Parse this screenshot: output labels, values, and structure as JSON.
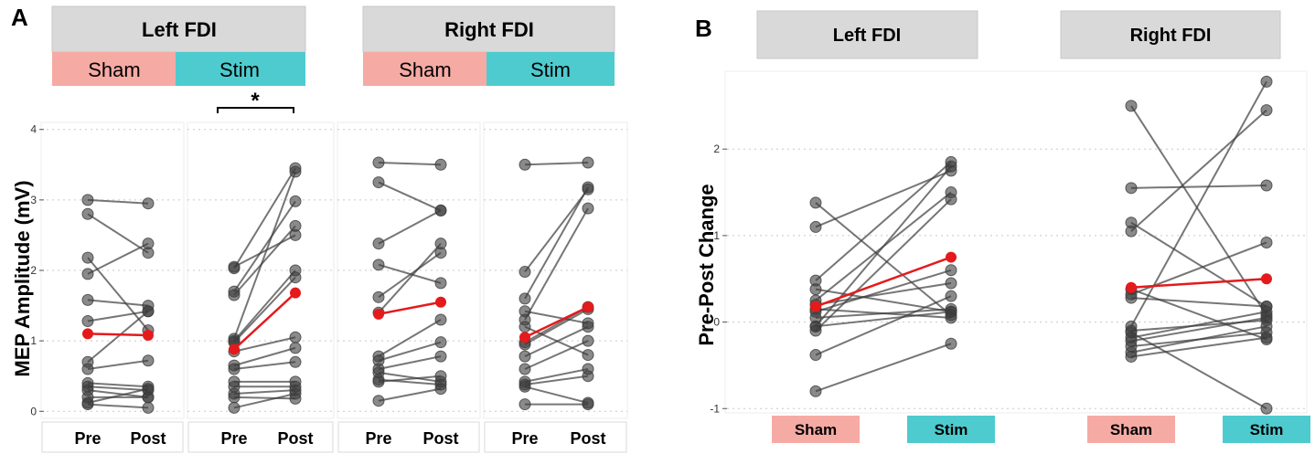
{
  "panel_a": {
    "letter": "A",
    "headers": [
      "Left FDI",
      "Right FDI"
    ],
    "condition_labels": [
      "Sham",
      "Stim",
      "Sham",
      "Stim"
    ],
    "significance": "*",
    "ylabel": "MEP Amplitude (mV)",
    "yticks": [
      "0",
      "1",
      "2",
      "3",
      "4"
    ],
    "xtick_labels": [
      "Pre",
      "Post"
    ]
  },
  "panel_b": {
    "letter": "B",
    "headers": [
      "Left FDI",
      "Right FDI"
    ],
    "significance": "*",
    "ylabel": "Pre-Post Change",
    "yticks": [
      "-1",
      "0",
      "1",
      "2"
    ],
    "xtick_labels": [
      "Sham",
      "Stim",
      "Sham",
      "Stim"
    ]
  },
  "colors": {
    "sham": "#f6aaa4",
    "stim": "#4ecbcf",
    "header_bg": "#d9d9d9",
    "points": "#3c3c3c",
    "mean": "#e41a1c"
  },
  "chart_data": [
    {
      "type": "line",
      "title": "",
      "ylabel": "MEP Amplitude (mV)",
      "ylim": [
        -0.1,
        4.1
      ],
      "x": [
        "Pre",
        "Post"
      ],
      "facets": [
        {
          "muscle": "Left FDI",
          "condition": "Sham",
          "subjects": [
            [
              3.0,
              2.95
            ],
            [
              2.8,
              2.25
            ],
            [
              2.18,
              1.15
            ],
            [
              1.95,
              2.38
            ],
            [
              1.58,
              1.5
            ],
            [
              1.28,
              1.42
            ],
            [
              0.7,
              1.42
            ],
            [
              0.6,
              0.72
            ],
            [
              0.4,
              0.35
            ],
            [
              0.35,
              0.3
            ],
            [
              0.3,
              0.2
            ],
            [
              0.2,
              0.2
            ],
            [
              0.12,
              0.32
            ],
            [
              0.1,
              0.05
            ]
          ],
          "mean": [
            1.1,
            1.08
          ]
        },
        {
          "muscle": "Left FDI",
          "condition": "Stim",
          "subjects": [
            [
              2.05,
              2.5
            ],
            [
              2.03,
              3.45
            ],
            [
              1.7,
              2.98
            ],
            [
              1.65,
              2.63
            ],
            [
              1.03,
              3.4
            ],
            [
              1.0,
              2.0
            ],
            [
              0.98,
              1.9
            ],
            [
              0.85,
              1.05
            ],
            [
              0.65,
              0.9
            ],
            [
              0.6,
              0.7
            ],
            [
              0.42,
              0.42
            ],
            [
              0.35,
              0.35
            ],
            [
              0.25,
              0.3
            ],
            [
              0.2,
              0.18
            ],
            [
              0.05,
              0.25
            ]
          ],
          "mean": [
            0.88,
            1.68
          ]
        },
        {
          "muscle": "Right FDI",
          "condition": "Sham",
          "subjects": [
            [
              3.53,
              3.5
            ],
            [
              3.25,
              2.85
            ],
            [
              2.38,
              2.85
            ],
            [
              2.08,
              1.82
            ],
            [
              1.62,
              2.25
            ],
            [
              1.4,
              2.38
            ],
            [
              0.78,
              1.3
            ],
            [
              0.72,
              0.98
            ],
            [
              0.6,
              0.78
            ],
            [
              0.55,
              0.42
            ],
            [
              0.45,
              0.38
            ],
            [
              0.42,
              0.5
            ],
            [
              0.15,
              0.32
            ]
          ],
          "mean": [
            1.38,
            1.55
          ]
        },
        {
          "muscle": "Right FDI",
          "condition": "Stim",
          "subjects": [
            [
              3.5,
              3.53
            ],
            [
              1.98,
              3.15
            ],
            [
              1.6,
              3.18
            ],
            [
              1.42,
              1.25
            ],
            [
              1.3,
              2.88
            ],
            [
              1.2,
              0.8
            ],
            [
              0.98,
              1.48
            ],
            [
              0.95,
              1.45
            ],
            [
              0.78,
              1.2
            ],
            [
              0.6,
              1.0
            ],
            [
              0.42,
              0.6
            ],
            [
              0.38,
              0.5
            ],
            [
              0.35,
              0.12
            ],
            [
              0.1,
              0.1
            ]
          ],
          "mean": [
            1.05,
            1.48
          ]
        }
      ]
    },
    {
      "type": "line",
      "title": "",
      "ylabel": "Pre-Post Change",
      "ylim": [
        -1.05,
        2.9
      ],
      "x": [
        "Sham",
        "Stim"
      ],
      "facets": [
        {
          "muscle": "Left FDI",
          "subjects": [
            [
              1.38,
              0.08
            ],
            [
              1.1,
              1.75
            ],
            [
              0.48,
              1.85
            ],
            [
              0.38,
              0.12
            ],
            [
              0.25,
              1.5
            ],
            [
              0.2,
              0.45
            ],
            [
              0.15,
              0.05
            ],
            [
              0.12,
              0.6
            ],
            [
              0.05,
              0.15
            ],
            [
              -0.05,
              1.8
            ],
            [
              -0.05,
              0.12
            ],
            [
              -0.1,
              1.42
            ],
            [
              -0.38,
              0.3
            ],
            [
              -0.8,
              -0.25
            ]
          ],
          "mean": [
            0.18,
            0.75
          ]
        },
        {
          "muscle": "Right FDI",
          "subjects": [
            [
              2.5,
              0.08
            ],
            [
              1.55,
              1.58
            ],
            [
              1.15,
              0.18
            ],
            [
              1.05,
              2.45
            ],
            [
              0.38,
              -0.2
            ],
            [
              0.32,
              0.92
            ],
            [
              0.28,
              0.18
            ],
            [
              -0.05,
              2.78
            ],
            [
              -0.1,
              0.02
            ],
            [
              -0.12,
              -1.0
            ],
            [
              -0.18,
              0.12
            ],
            [
              -0.22,
              0.05
            ],
            [
              -0.28,
              -0.12
            ],
            [
              -0.35,
              -0.05
            ],
            [
              -0.4,
              -0.18
            ]
          ],
          "mean": [
            0.4,
            0.5
          ]
        }
      ]
    }
  ]
}
